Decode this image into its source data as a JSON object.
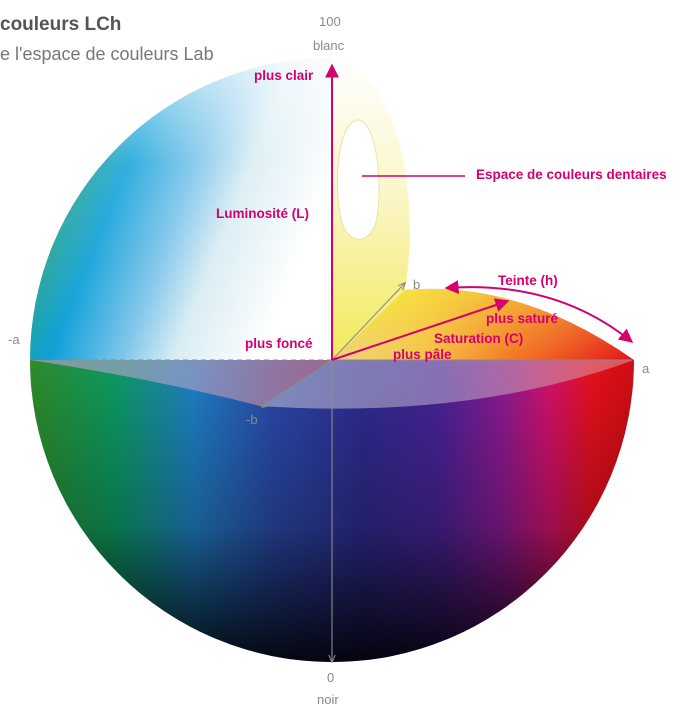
{
  "title": "couleurs LCh",
  "subtitle": "e l'espace de couleurs Lab",
  "axis": {
    "top_value": "100",
    "top_name": "blanc",
    "bottom_value": "0",
    "bottom_name": "noir",
    "neg_a": "-a",
    "pos_a": "a",
    "pos_b": "b",
    "neg_b": "-b"
  },
  "annotations": {
    "lighter": "plus clair",
    "luminosity": "Luminosité (L)",
    "dental_space": "Espace de couleurs dentaires",
    "hue": "Teinte (h)",
    "more_saturated": "plus saturé",
    "saturation": "Saturation (C)",
    "paler": "plus pâle",
    "darker": "plus foncé"
  },
  "colors": {
    "accent": "#d4006e",
    "axis": "#8a8a8a",
    "text_title": "#555555",
    "text_subtitle": "#777777"
  }
}
